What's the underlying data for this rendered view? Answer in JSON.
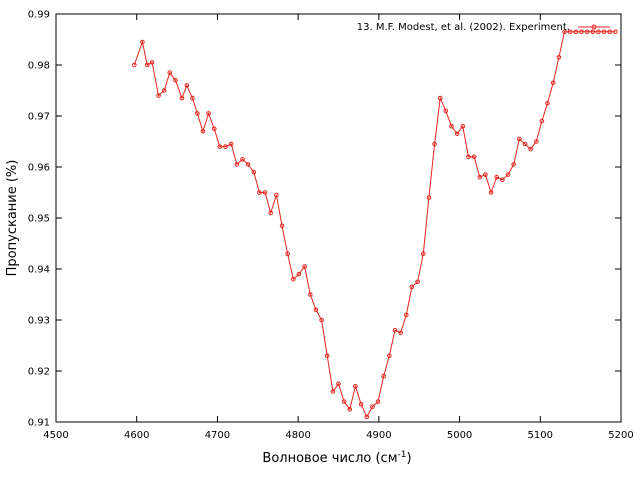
{
  "chart_data": {
    "type": "line",
    "title": "",
    "xlabel": "Волновое число (см",
    "xlabel_sup": "-1",
    "xlabel_close": ")",
    "ylabel": "Пропускание (%)",
    "xlim": [
      4500,
      5200
    ],
    "ylim": [
      0.91,
      0.99
    ],
    "xticks": [
      "4500",
      "4600",
      "4700",
      "4800",
      "4900",
      "5000",
      "5100",
      "5200"
    ],
    "yticks": [
      "0.91",
      "0.92",
      "0.93",
      "0.94",
      "0.95",
      "0.96",
      "0.97",
      "0.98",
      "0.99"
    ],
    "grid": false,
    "legend_position": "top-right",
    "series": [
      {
        "name": "13. M.F. Modest, et al. (2002). Experiment.",
        "color": "#e8241c",
        "marker": "circle",
        "x": [
          4597,
          4607,
          4613,
          4619,
          4627,
          4634,
          4641,
          4648,
          4656,
          4662,
          4669,
          4675,
          4682,
          4689,
          4696,
          4703,
          4710,
          4717,
          4724,
          4731,
          4738,
          4745,
          4752,
          4759,
          4766,
          4773,
          4780,
          4787,
          4794,
          4801,
          4808,
          4815,
          4822,
          4829,
          4836,
          4843,
          4850,
          4857,
          4864,
          4871,
          4878,
          4885,
          4892,
          4899,
          4906,
          4913,
          4920,
          4927,
          4934,
          4941,
          4948,
          4955,
          4962,
          4969,
          4976,
          4983,
          4990,
          4997,
          5004,
          5011,
          5018,
          5025,
          5032,
          5039,
          5046,
          5053,
          5060,
          5067,
          5074,
          5081,
          5088,
          5095,
          5102,
          5109,
          5116,
          5123,
          5130,
          5137,
          5144,
          5151,
          5158,
          5165,
          5172,
          5179,
          5186,
          5193
        ],
        "y": [
          0.98,
          0.9845,
          0.98,
          0.9805,
          0.974,
          0.975,
          0.9785,
          0.977,
          0.9735,
          0.976,
          0.9735,
          0.9705,
          0.967,
          0.9705,
          0.9675,
          0.964,
          0.964,
          0.9645,
          0.9605,
          0.9615,
          0.9605,
          0.959,
          0.955,
          0.955,
          0.951,
          0.9545,
          0.9485,
          0.943,
          0.938,
          0.939,
          0.9405,
          0.935,
          0.932,
          0.93,
          0.923,
          0.916,
          0.9175,
          0.914,
          0.9125,
          0.917,
          0.9135,
          0.911,
          0.913,
          0.914,
          0.919,
          0.923,
          0.928,
          0.9275,
          0.931,
          0.9365,
          0.9375,
          0.943,
          0.954,
          0.9645,
          0.9735,
          0.971,
          0.968,
          0.9665,
          0.968,
          0.962,
          0.962,
          0.958,
          0.9585,
          0.955,
          0.958,
          0.9575,
          0.9585,
          0.9605,
          0.9655,
          0.9645,
          0.9635,
          0.965,
          0.969,
          0.9725,
          0.9765,
          0.9815,
          0.9865,
          0.9865,
          0.9865,
          0.9865,
          0.9865,
          0.9865,
          0.9865,
          0.9865,
          0.9865,
          0.9865
        ]
      }
    ]
  }
}
